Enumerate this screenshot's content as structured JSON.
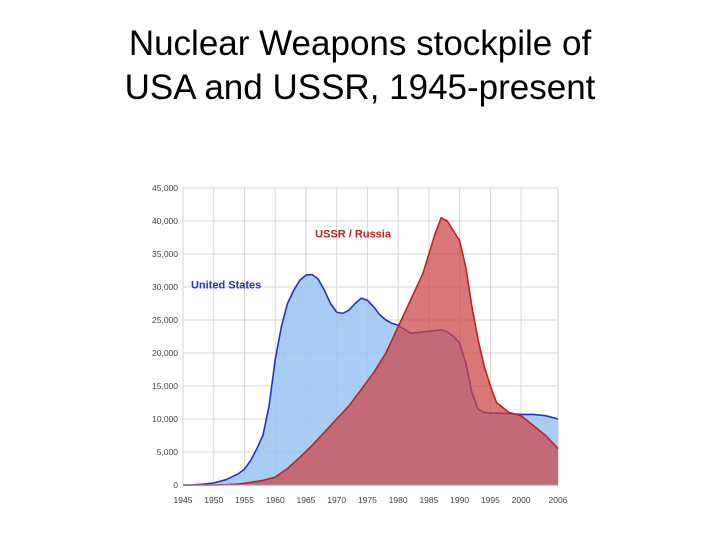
{
  "slide": {
    "title_line1": "Nuclear Weapons stockpile of",
    "title_line2": "USA and USSR, 1945-present"
  },
  "chart_data": {
    "type": "area",
    "title": "",
    "xlabel": "",
    "ylabel": "",
    "xlim": [
      1945,
      2006
    ],
    "ylim": [
      0,
      45000
    ],
    "grid": true,
    "legend": "inline labels",
    "xticks": [
      "1945",
      "1950",
      "1955",
      "1960",
      "1965",
      "1970",
      "1975",
      "1980",
      "1985",
      "1990",
      "1995",
      "2000",
      "2006"
    ],
    "yticks": [
      "0",
      "5,000",
      "10,000",
      "15,000",
      "20,000",
      "25,000",
      "30,000",
      "35,000",
      "40,000",
      "45,000"
    ],
    "series": [
      {
        "name": "United States",
        "color": "#2233cc",
        "fill": "#99c4f2",
        "x": [
          1945,
          1946,
          1948,
          1950,
          1952,
          1954,
          1955,
          1956,
          1957,
          1958,
          1959,
          1960,
          1961,
          1962,
          1963,
          1964,
          1965,
          1966,
          1967,
          1968,
          1969,
          1970,
          1971,
          1972,
          1973,
          1974,
          1975,
          1976,
          1977,
          1978,
          1979,
          1980,
          1982,
          1984,
          1986,
          1987,
          1988,
          1989,
          1990,
          1991,
          1992,
          1993,
          1994,
          1995,
          1996,
          1998,
          2000,
          2002,
          2004,
          2006
        ],
        "y": [
          0,
          0,
          100,
          300,
          800,
          1700,
          2400,
          3700,
          5500,
          7500,
          12000,
          19000,
          24000,
          27500,
          29500,
          31000,
          31800,
          31900,
          31200,
          29500,
          27500,
          26200,
          26000,
          26500,
          27500,
          28300,
          28000,
          27000,
          25800,
          25000,
          24500,
          24200,
          23000,
          23200,
          23400,
          23500,
          23200,
          22500,
          21500,
          18500,
          14000,
          11500,
          11000,
          10900,
          10900,
          10800,
          10700,
          10700,
          10500,
          10000
        ]
      },
      {
        "name": "USSR / Russia",
        "color": "#bb2222",
        "fill": "#cc4444",
        "x": [
          1945,
          1948,
          1950,
          1952,
          1954,
          1956,
          1958,
          1960,
          1962,
          1964,
          1966,
          1968,
          1970,
          1972,
          1974,
          1976,
          1978,
          1980,
          1982,
          1984,
          1985,
          1986,
          1987,
          1988,
          1990,
          1991,
          1992,
          1993,
          1994,
          1995,
          1996,
          1998,
          2000,
          2002,
          2004,
          2006
        ],
        "y": [
          0,
          0,
          0,
          50,
          150,
          400,
          700,
          1200,
          2500,
          4200,
          6000,
          8000,
          10000,
          12000,
          14500,
          17000,
          20000,
          24000,
          28000,
          32000,
          35000,
          38000,
          40500,
          40000,
          37000,
          33000,
          27000,
          22000,
          18000,
          15000,
          12500,
          11000,
          10500,
          9000,
          7500,
          5500
        ]
      }
    ]
  }
}
